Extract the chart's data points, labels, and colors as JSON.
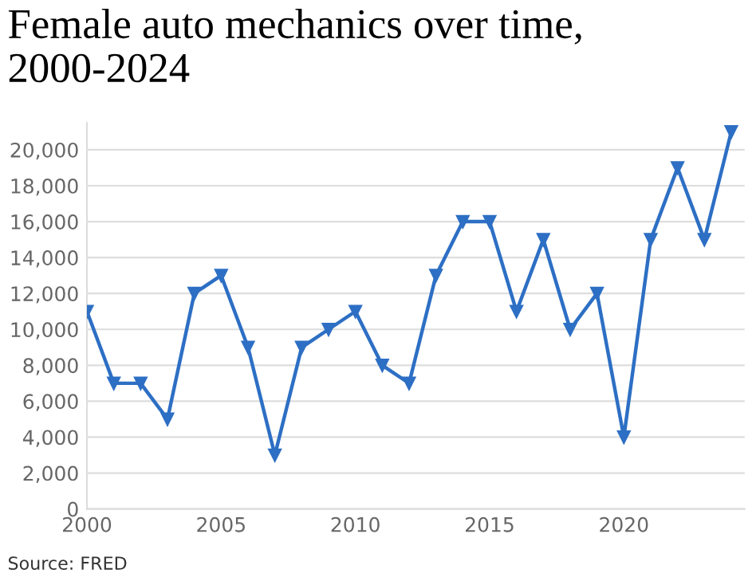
{
  "chart_data": {
    "type": "line",
    "title": "Female auto mechanics over time, 2000-2024",
    "x": [
      2000,
      2001,
      2002,
      2003,
      2004,
      2005,
      2006,
      2007,
      2008,
      2009,
      2010,
      2011,
      2012,
      2013,
      2014,
      2015,
      2016,
      2017,
      2018,
      2019,
      2020,
      2021,
      2022,
      2023,
      2024
    ],
    "series": [
      {
        "color": "#2d6fc4",
        "values": [
          11000,
          7000,
          7000,
          5000,
          12000,
          13000,
          9000,
          3000,
          9000,
          10000,
          11000,
          8000,
          7000,
          13000,
          16000,
          16000,
          11000,
          15000,
          10000,
          12000,
          4000,
          15000,
          19000,
          15000,
          21000
        ]
      }
    ],
    "xlim": [
      2000,
      2024.5
    ],
    "xticks": [
      2000,
      2005,
      2010,
      2015,
      2020
    ],
    "ylim": [
      0,
      21500
    ],
    "yticks": [
      0,
      {
        "value": 2000,
        "label": "2,000"
      },
      {
        "value": 4000,
        "label": "4,000"
      },
      {
        "value": 6000,
        "label": "6,000"
      },
      {
        "value": 8000,
        "label": "8,000"
      },
      {
        "value": 10000,
        "label": "10,000"
      },
      {
        "value": 12000,
        "label": "12,000"
      },
      {
        "value": 14000,
        "label": "14,000"
      },
      {
        "value": 16000,
        "label": "16,000"
      },
      {
        "value": 18000,
        "label": "18,000"
      },
      {
        "value": 20000,
        "label": "20,000"
      }
    ],
    "grid": "y",
    "marker": "triangle",
    "line_style": "solid",
    "annotations": [
      "Source: FRED"
    ]
  }
}
